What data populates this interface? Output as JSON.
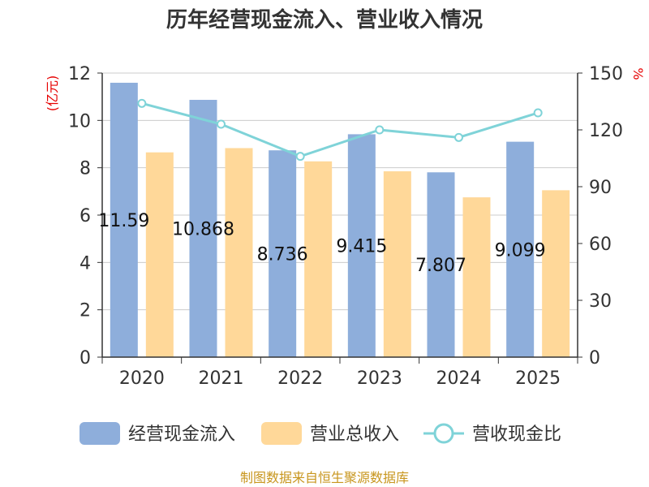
{
  "chart_data": {
    "type": "bar",
    "title": "历年经营现金流入、营业收入情况",
    "categories": [
      "2020",
      "2021",
      "2022",
      "2023",
      "2024",
      "2025"
    ],
    "series": [
      {
        "name": "经营现金流入",
        "kind": "bar",
        "axis": "left",
        "color": "#8eaedb",
        "values": [
          11.59,
          10.868,
          8.736,
          9.415,
          7.807,
          9.099
        ],
        "labels": [
          "11.59",
          "10.868",
          "8.736",
          "9.415",
          "7.807",
          "9.099"
        ]
      },
      {
        "name": "营业总收入",
        "kind": "bar",
        "axis": "left",
        "color": "#ffd899",
        "values": [
          8.65,
          8.83,
          8.27,
          7.85,
          6.75,
          7.05
        ]
      },
      {
        "name": "营收现金比",
        "kind": "line",
        "axis": "right",
        "color": "#7fd3d8",
        "values": [
          134,
          123,
          106,
          120,
          116,
          129
        ]
      }
    ],
    "y_left": {
      "unit": "(亿元)",
      "min": 0,
      "max": 12,
      "ticks": [
        "0",
        "2",
        "4",
        "6",
        "8",
        "10",
        "12"
      ]
    },
    "y_right": {
      "unit": "%",
      "min": 0,
      "max": 150,
      "ticks": [
        "0",
        "30",
        "60",
        "90",
        "120",
        "150"
      ]
    },
    "grid": true,
    "legend_position": "bottom"
  },
  "source_note": "制图数据来自恒生聚源数据库"
}
